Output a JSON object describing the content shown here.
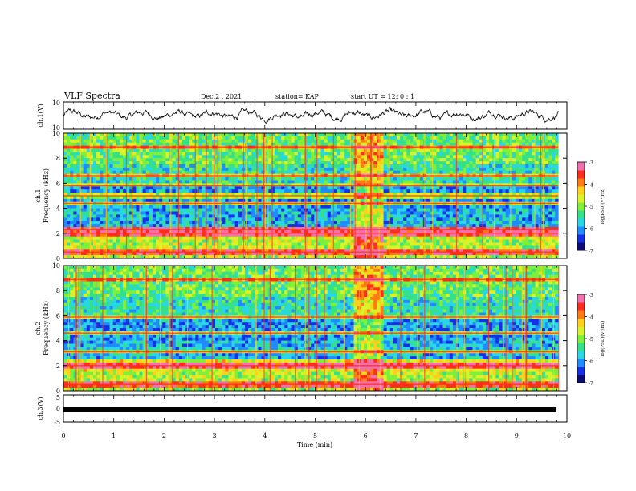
{
  "header": {
    "title": "VLF Spectra",
    "date": "Dec.2 , 2021",
    "station": "station= KAP",
    "start": "start UT = 12: 0 : 1"
  },
  "colors": {
    "colormap": [
      "#0b0b7a",
      "#1530e8",
      "#1e8cff",
      "#28d6e6",
      "#34e08a",
      "#7ef03a",
      "#d9f22a",
      "#ffd11a",
      "#ff7a12",
      "#ff2d1a",
      "#f26fb0"
    ]
  },
  "chart_data": [
    {
      "type": "line",
      "name": "ch1-waveform",
      "ylabel": "ch.1(V)",
      "ylim": [
        -10,
        10
      ],
      "yticks": [
        "10",
        "-10"
      ],
      "xlim": [
        0,
        10
      ],
      "description_values": {
        "mean": 0.5,
        "amplitude_range": [
          -7,
          9
        ]
      }
    },
    {
      "type": "heatmap",
      "name": "ch1-spectrogram",
      "ylabel": "ch.1 Frequency (kHz)",
      "ylim": [
        0,
        10
      ],
      "yticks": [
        "0",
        "2",
        "4",
        "6",
        "8",
        "10"
      ],
      "xlim": [
        0,
        10
      ],
      "x_data_end": 9.83,
      "strong_bands_khz": [
        0.5,
        2.0,
        2.3,
        4.4,
        5.0,
        5.8,
        6.6,
        8.9
      ],
      "burst_interval_min": [
        5.75,
        6.35
      ],
      "colorbar": {
        "label": "log(PSD)(V²/Hz)",
        "range": [
          -7,
          -3
        ],
        "ticks": [
          "-3",
          "-4",
          "-5",
          "-6",
          "-7"
        ]
      }
    },
    {
      "type": "heatmap",
      "name": "ch2-spectrogram",
      "ylabel": "ch.2 Frequency (kHz)",
      "ylim": [
        0,
        10
      ],
      "yticks": [
        "0",
        "2",
        "4",
        "6",
        "8",
        "10"
      ],
      "xlim": [
        0,
        10
      ],
      "x_data_end": 9.83,
      "strong_bands_khz": [
        0.5,
        2.0,
        3.1,
        4.6,
        5.9,
        8.9
      ],
      "burst_interval_min": [
        5.75,
        6.35
      ],
      "colorbar": {
        "label": "log(PSD)(V²/Hz)",
        "range": [
          -7,
          -3
        ],
        "ticks": [
          "-3",
          "-4",
          "-5",
          "-6",
          "-7"
        ]
      }
    },
    {
      "type": "line",
      "name": "ch3-waveform",
      "ylabel": "ch.3(V)",
      "ylim": [
        -5,
        5
      ],
      "yticks": [
        "5",
        "0",
        "-5"
      ],
      "xlim": [
        0,
        10
      ],
      "constant_value": -1
    }
  ],
  "xaxis": {
    "label": "Time (min)",
    "ticks": [
      "0",
      "1",
      "2",
      "3",
      "4",
      "5",
      "6",
      "7",
      "8",
      "9",
      "10"
    ]
  }
}
